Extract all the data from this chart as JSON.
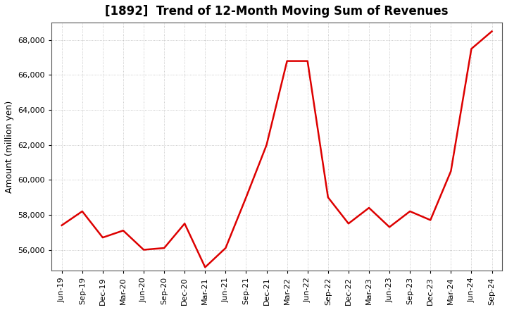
{
  "title": "[1892]  Trend of 12-Month Moving Sum of Revenues",
  "ylabel": "Amount (million yen)",
  "line_color": "#dd0000",
  "line_width": 1.8,
  "background_color": "#ffffff",
  "grid_color": "#bbbbbb",
  "ylim": [
    54800,
    69000
  ],
  "yticks": [
    56000,
    58000,
    60000,
    62000,
    64000,
    66000,
    68000
  ],
  "x_labels": [
    "Jun-19",
    "Sep-19",
    "Dec-19",
    "Mar-20",
    "Jun-20",
    "Sep-20",
    "Dec-20",
    "Mar-21",
    "Jun-21",
    "Sep-21",
    "Dec-21",
    "Mar-22",
    "Jun-22",
    "Sep-22",
    "Dec-22",
    "Mar-23",
    "Jun-23",
    "Sep-23",
    "Dec-23",
    "Mar-24",
    "Jun-24",
    "Sep-24"
  ],
  "values": [
    57400,
    58200,
    56700,
    57100,
    56000,
    56100,
    57500,
    55000,
    56100,
    59000,
    62000,
    66800,
    66800,
    59000,
    57500,
    58400,
    57300,
    58200,
    57700,
    60500,
    67500,
    68500
  ],
  "title_fontsize": 12,
  "ylabel_fontsize": 9,
  "tick_fontsize": 8
}
